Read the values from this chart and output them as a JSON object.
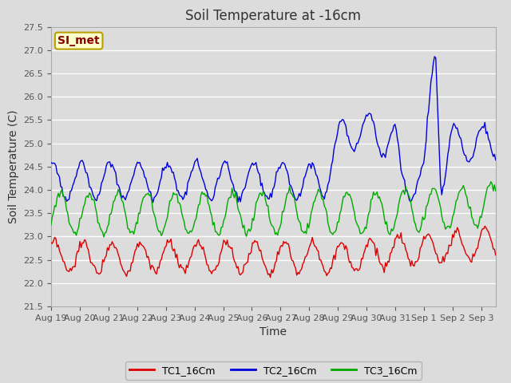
{
  "title": "Soil Temperature at -16cm",
  "xlabel": "Time",
  "ylabel": "Soil Temperature (C)",
  "ylim": [
    21.5,
    27.5
  ],
  "background_color": "#dcdcdc",
  "plot_bg_color": "#dcdcdc",
  "grid_color": "#ffffff",
  "legend_label": "SI_met",
  "legend_text_color": "#8b0000",
  "legend_box_fill": "#ffffcc",
  "legend_box_edge": "#b8a000",
  "series": {
    "TC1_16Cm": {
      "color": "#dd0000",
      "label": "TC1_16Cm"
    },
    "TC2_16Cm": {
      "color": "#0000dd",
      "label": "TC2_16Cm"
    },
    "TC3_16Cm": {
      "color": "#00aa00",
      "label": "TC3_16Cm"
    }
  },
  "xtick_labels": [
    "Aug 19",
    "Aug 20",
    "Aug 21",
    "Aug 22",
    "Aug 23",
    "Aug 24",
    "Aug 25",
    "Aug 26",
    "Aug 27",
    "Aug 28",
    "Aug 29",
    "Aug 30",
    "Aug 31",
    "Sep 1",
    "Sep 2",
    "Sep 3"
  ],
  "yticks": [
    21.5,
    22.0,
    22.5,
    23.0,
    23.5,
    24.0,
    24.5,
    25.0,
    25.5,
    26.0,
    26.5,
    27.0,
    27.5
  ],
  "title_fontsize": 12,
  "axis_label_fontsize": 10,
  "tick_fontsize": 8,
  "n_days": 15.5,
  "n_points_per_day": 24
}
